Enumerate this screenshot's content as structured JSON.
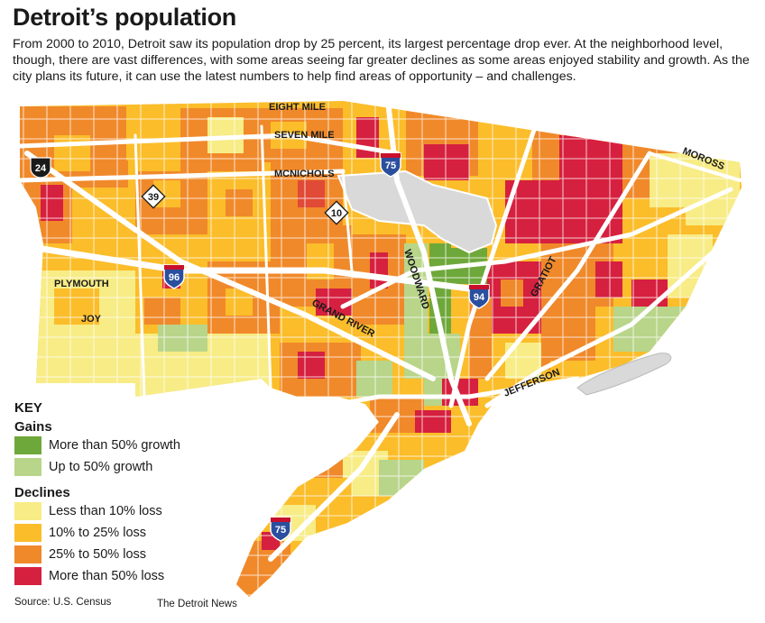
{
  "header": {
    "title": "Detroit’s population",
    "intro": "From 2000 to 2010, Detroit saw its population drop by 25 percent, its largest percentage drop ever. At the neighborhood level, though, there are vast differences, with some areas seeing far greater declines as some areas enjoyed stability and growth.  As the city plans its future, it can use the latest numbers to help find areas of opportunity – and challenges."
  },
  "map": {
    "road_labels": {
      "eight_mile": "EIGHT MILE",
      "seven_mile": "SEVEN MILE",
      "mcnichols": "MCNICHOLS",
      "plymouth": "PLYMOUTH",
      "joy": "JOY",
      "grand_river": "GRAND RIVER",
      "woodward": "WOODWARD",
      "gratiot": "GRATIOT",
      "jefferson": "JEFFERSON",
      "moross": "MOROSS"
    },
    "route_shields": {
      "i75_north": "75",
      "i75_south": "75",
      "i96": "96",
      "i94": "94",
      "m10": "10",
      "m39": "39",
      "us24": "24"
    }
  },
  "key": {
    "title": "KEY",
    "gains_heading": "Gains",
    "gains": [
      {
        "label": "More than 50% growth",
        "color": "#6ea83b"
      },
      {
        "label": "Up to 50% growth",
        "color": "#b8d58a"
      }
    ],
    "declines_heading": "Declines",
    "declines": [
      {
        "label": "Less than 10% loss",
        "color": "#f7ec86"
      },
      {
        "label": "10% to 25% loss",
        "color": "#fbbd2a"
      },
      {
        "label": "25% to 50% loss",
        "color": "#f0892a"
      },
      {
        "label": "More than 50% loss",
        "color": "#d6203f"
      }
    ]
  },
  "footer": {
    "source": "Source: U.S. Census",
    "credit": "The Detroit News"
  }
}
